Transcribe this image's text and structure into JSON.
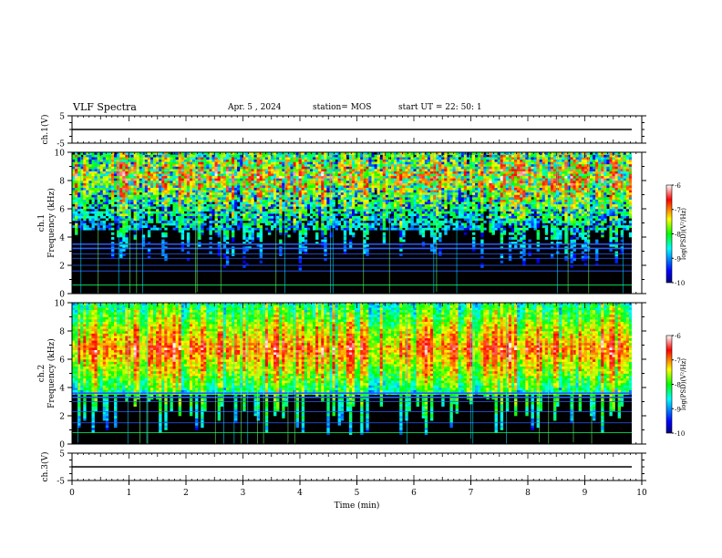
{
  "header": {
    "title": "VLF Spectra",
    "date": "Apr. 5 , 2024",
    "station": "station= MOS",
    "start_ut": "start UT =  22: 50: 1"
  },
  "chart_data": {
    "type": "heatmap",
    "x_axis": {
      "label": "Time (min)",
      "range": [
        0,
        10
      ],
      "ticks": [
        "0",
        "1",
        "2",
        "3",
        "4",
        "5",
        "6",
        "7",
        "8",
        "9",
        "10"
      ]
    },
    "panels": [
      {
        "id": "ch1-waveform",
        "kind": "waveform",
        "ylabel": "ch.1(V)",
        "yrange": [
          -5,
          5
        ],
        "yticks": [
          "5",
          "-5"
        ],
        "level": 0
      },
      {
        "id": "ch1-spectrogram",
        "kind": "spectrogram",
        "ylabel": "ch.1 Frequency (kHz)",
        "yrange": [
          0,
          10
        ],
        "yticks": [
          "0",
          "2",
          "4",
          "6",
          "8",
          "10"
        ],
        "emission_band_khz": [
          4.5,
          10
        ],
        "background_lines_khz": [
          0.6,
          1.6,
          2.0,
          2.5,
          2.8,
          3.2,
          3.5
        ],
        "colorbar": {
          "label": "log(PSD)(V²/Hz)",
          "range": [
            -10,
            -6
          ],
          "ticks": [
            "-6",
            "-7",
            "-8",
            "-9",
            "-10"
          ]
        }
      },
      {
        "id": "ch2-spectrogram",
        "kind": "spectrogram",
        "ylabel": "ch.2 Frequency (kHz)",
        "yrange": [
          0,
          10
        ],
        "yticks": [
          "0",
          "2",
          "4",
          "6",
          "8",
          "10"
        ],
        "emission_band_khz": [
          3.5,
          10
        ],
        "background_lines_khz": [
          0.8,
          1.5,
          2.3,
          3.0,
          3.3,
          3.6
        ],
        "colorbar": {
          "label": "log(PSD)(V²/Hz)",
          "range": [
            -10,
            -6
          ],
          "ticks": [
            "-6",
            "-7",
            "-8",
            "-9",
            "-10"
          ]
        }
      },
      {
        "id": "ch3-waveform",
        "kind": "waveform",
        "ylabel": "ch.3(V)",
        "yrange": [
          -5,
          5
        ],
        "yticks": [
          "5",
          "-5"
        ],
        "level": 0
      }
    ],
    "colors": {
      "background": "#000000",
      "low": "#00007f",
      "mid": "#00ff00",
      "high": "#ff0000",
      "top": "#ffffff"
    }
  }
}
